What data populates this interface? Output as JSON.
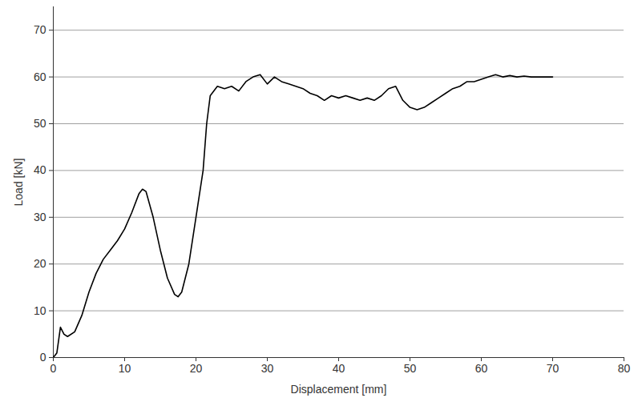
{
  "chart_data": {
    "type": "line",
    "x_label": "Displacement [mm]",
    "y_label": "Load [kN]",
    "x": [
      0,
      0.5,
      1,
      1.5,
      2,
      3,
      4,
      5,
      6,
      7,
      8,
      9,
      10,
      11,
      12,
      12.5,
      13,
      14,
      15,
      16,
      17,
      17.5,
      18,
      19,
      20,
      21,
      21.5,
      22,
      23,
      24,
      25,
      26,
      27,
      28,
      29,
      30,
      31,
      32,
      33,
      34,
      35,
      36,
      37,
      38,
      39,
      40,
      41,
      42,
      43,
      44,
      45,
      46,
      47,
      48,
      49,
      50,
      51,
      52,
      53,
      54,
      55,
      56,
      57,
      58,
      59,
      60,
      61,
      62,
      63,
      64,
      65,
      66,
      67,
      68,
      69,
      70
    ],
    "values": [
      0,
      1,
      6.5,
      5,
      4.5,
      5.5,
      9,
      14,
      18,
      21,
      23,
      25,
      27.5,
      31,
      35,
      36,
      35.5,
      30,
      23,
      17,
      13.5,
      13,
      14,
      20,
      30,
      40,
      50,
      56,
      58,
      57.5,
      58,
      57,
      59,
      60,
      60.5,
      58.5,
      60,
      59,
      58.5,
      58,
      57.5,
      56.5,
      56,
      55,
      56,
      55.5,
      56,
      55.5,
      55,
      55.5,
      55,
      56,
      57.5,
      58,
      55,
      53.5,
      53,
      53.5,
      54.5,
      55.5,
      56.5,
      57.5,
      58,
      59,
      59,
      59.5,
      60,
      60.5,
      60,
      60.3,
      60,
      60.2,
      60,
      60,
      60,
      60
    ],
    "color": "#000000",
    "xlim": [
      0,
      80
    ],
    "xticks": [
      0,
      10,
      20,
      30,
      40,
      50,
      60,
      70,
      80
    ],
    "ylim": [
      0,
      75
    ],
    "yticks": [
      0,
      10,
      20,
      30,
      40,
      50,
      60,
      70
    ],
    "grid": true
  }
}
